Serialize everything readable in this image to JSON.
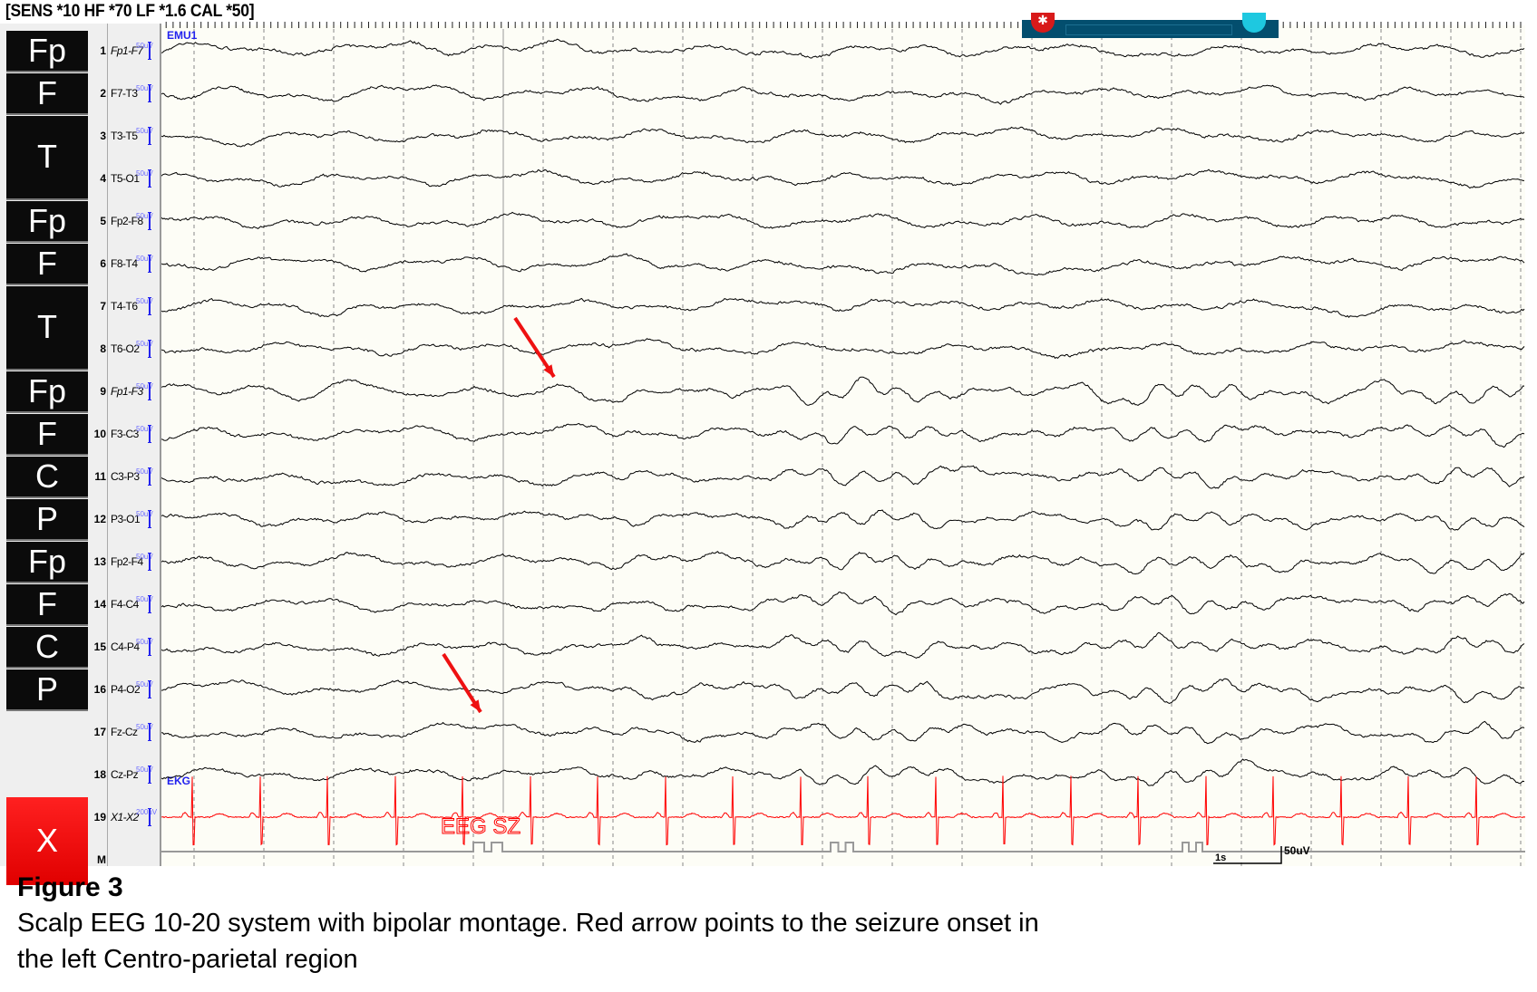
{
  "header": {
    "settings": "[SENS *10  HF *70  LF *1.6  CAL *50]"
  },
  "montage_label": "EMU1",
  "ekg_label": "EKG",
  "event_marker": "EEG SZ",
  "groups": [
    {
      "label": "Fp",
      "from": 1,
      "to": 1
    },
    {
      "label": "F",
      "from": 2,
      "to": 2
    },
    {
      "label": "T",
      "from": 3,
      "to": 4
    },
    {
      "label": "Fp",
      "from": 5,
      "to": 5
    },
    {
      "label": "F",
      "from": 6,
      "to": 6
    },
    {
      "label": "T",
      "from": 7,
      "to": 8
    },
    {
      "label": "Fp",
      "from": 9,
      "to": 9
    },
    {
      "label": "F",
      "from": 10,
      "to": 10
    },
    {
      "label": "C",
      "from": 11,
      "to": 11
    },
    {
      "label": "P",
      "from": 12,
      "to": 12
    },
    {
      "label": "Fp",
      "from": 13,
      "to": 13
    },
    {
      "label": "F",
      "from": 14,
      "to": 14
    },
    {
      "label": "C",
      "from": 15,
      "to": 15
    },
    {
      "label": "P",
      "from": 16,
      "to": 16
    },
    {
      "label": "X",
      "from": 19,
      "to": 20,
      "color": "#e60000"
    }
  ],
  "channels": [
    {
      "num": "1",
      "label": "Fp1-F7",
      "italic": true,
      "sens": "50uV"
    },
    {
      "num": "2",
      "label": "F7-T3",
      "sens": "50uV"
    },
    {
      "num": "3",
      "label": "T3-T5",
      "sens": "50uV"
    },
    {
      "num": "4",
      "label": "T5-O1",
      "sens": "50uV"
    },
    {
      "num": "5",
      "label": "Fp2-F8",
      "sens": "50uV"
    },
    {
      "num": "6",
      "label": "F8-T4",
      "sens": "50uV"
    },
    {
      "num": "7",
      "label": "T4-T6",
      "sens": "50uV"
    },
    {
      "num": "8",
      "label": "T6-O2",
      "sens": "50uV"
    },
    {
      "num": "9",
      "label": "Fp1-F3",
      "italic": true,
      "sens": "50uV"
    },
    {
      "num": "10",
      "label": "F3-C3",
      "sens": "50uV"
    },
    {
      "num": "11",
      "label": "C3-P3",
      "sens": "50uV"
    },
    {
      "num": "12",
      "label": "P3-O1",
      "sens": "50uV"
    },
    {
      "num": "13",
      "label": "Fp2-F4",
      "sens": "50uV"
    },
    {
      "num": "14",
      "label": "F4-C4",
      "sens": "50uV"
    },
    {
      "num": "15",
      "label": "C4-P4",
      "sens": "50uV"
    },
    {
      "num": "16",
      "label": "P4-O2",
      "sens": "50uV"
    },
    {
      "num": "17",
      "label": "Fz-Cz",
      "sens": "50uV"
    },
    {
      "num": "18",
      "label": "Cz-Pz",
      "sens": "50uV"
    },
    {
      "num": "19",
      "label": "X1-X2",
      "italic": true,
      "sens": "200uV",
      "color": "#ff0000"
    },
    {
      "num": "M",
      "label": ""
    }
  ],
  "scale": {
    "time": "1s",
    "amplitude": "50uV"
  },
  "colors": {
    "trace": "#000000",
    "ekg": "#ff0000",
    "arrow": "#ee1111",
    "background": "#fdfdf6",
    "calibration": "#2222ee"
  },
  "caption": {
    "title": "Figure 3",
    "line1": "Scalp EEG 10-20 system with bipolar montage. Red arrow points to the seizure onset in",
    "line2": "the left Centro-parietal region"
  }
}
